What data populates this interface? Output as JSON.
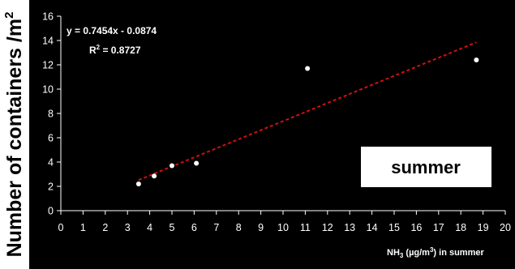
{
  "chart_data": {
    "type": "scatter",
    "xlabel": {
      "pre": "NH",
      "sub": "3",
      "mid": " (µg/m",
      "sup": "3",
      "post": ") in summer"
    },
    "ylabel": {
      "pre": "Number of containers /m",
      "sup": "2"
    },
    "xlim": [
      0,
      20
    ],
    "ylim": [
      0,
      16
    ],
    "x_ticks": [
      0,
      1,
      2,
      3,
      4,
      5,
      6,
      7,
      8,
      9,
      10,
      11,
      12,
      13,
      14,
      15,
      16,
      17,
      18,
      19,
      20
    ],
    "y_ticks": [
      0,
      2,
      4,
      6,
      8,
      10,
      12,
      14,
      16
    ],
    "points": [
      {
        "x": 3.5,
        "y": 2.2
      },
      {
        "x": 4.2,
        "y": 2.85
      },
      {
        "x": 5.0,
        "y": 3.7
      },
      {
        "x": 6.1,
        "y": 3.9
      },
      {
        "x": 11.1,
        "y": 11.7
      },
      {
        "x": 18.7,
        "y": 12.4
      }
    ],
    "trendline": {
      "slope": 0.7454,
      "intercept": -0.0874,
      "x_range": [
        3.5,
        18.7
      ],
      "equation": "y = 0.7454x - 0.0874",
      "r2_label": "R",
      "r2_sup": "2",
      "r2_value": " = 0.8727"
    },
    "annotation": "summer",
    "colors": {
      "background": "#000000",
      "axes": "#ffffff",
      "points": "#ffffff",
      "trendline": "#d01010",
      "annotation_box": "#ffffff"
    }
  }
}
